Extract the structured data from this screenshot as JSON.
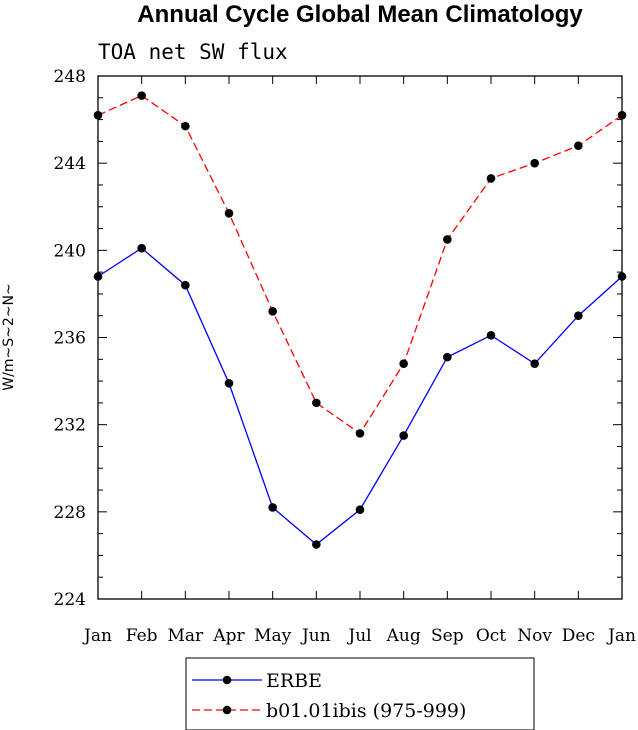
{
  "chart_data": {
    "type": "line",
    "title": "Annual Cycle Global Mean Climatology",
    "subtitle": "TOA net SW flux",
    "xlabel": "",
    "ylabel": "W/m~S~2~N~",
    "categories": [
      "Jan",
      "Feb",
      "Mar",
      "Apr",
      "May",
      "Jun",
      "Jul",
      "Aug",
      "Sep",
      "Oct",
      "Nov",
      "Dec",
      "Jan"
    ],
    "ylim": [
      224,
      248
    ],
    "yticks": [
      224,
      228,
      232,
      236,
      240,
      244,
      248
    ],
    "yticklabels": [
      "224",
      "228",
      "232",
      "236",
      "240",
      "244",
      "248"
    ],
    "grid": false,
    "legend_position": "bottom-center",
    "series": [
      {
        "name": "ERBE",
        "color": "#0000ff",
        "line_style": "solid",
        "values": [
          238.8,
          240.1,
          238.4,
          233.9,
          228.2,
          226.5,
          228.1,
          231.5,
          235.1,
          236.1,
          234.8,
          237.0,
          238.8
        ]
      },
      {
        "name": "b01.01ibis (975-999)",
        "color": "#ff0000",
        "line_style": "dashed",
        "values": [
          246.2,
          247.1,
          245.7,
          241.7,
          237.2,
          233.0,
          231.6,
          234.8,
          240.5,
          243.3,
          244.0,
          244.8,
          246.2
        ]
      }
    ]
  }
}
